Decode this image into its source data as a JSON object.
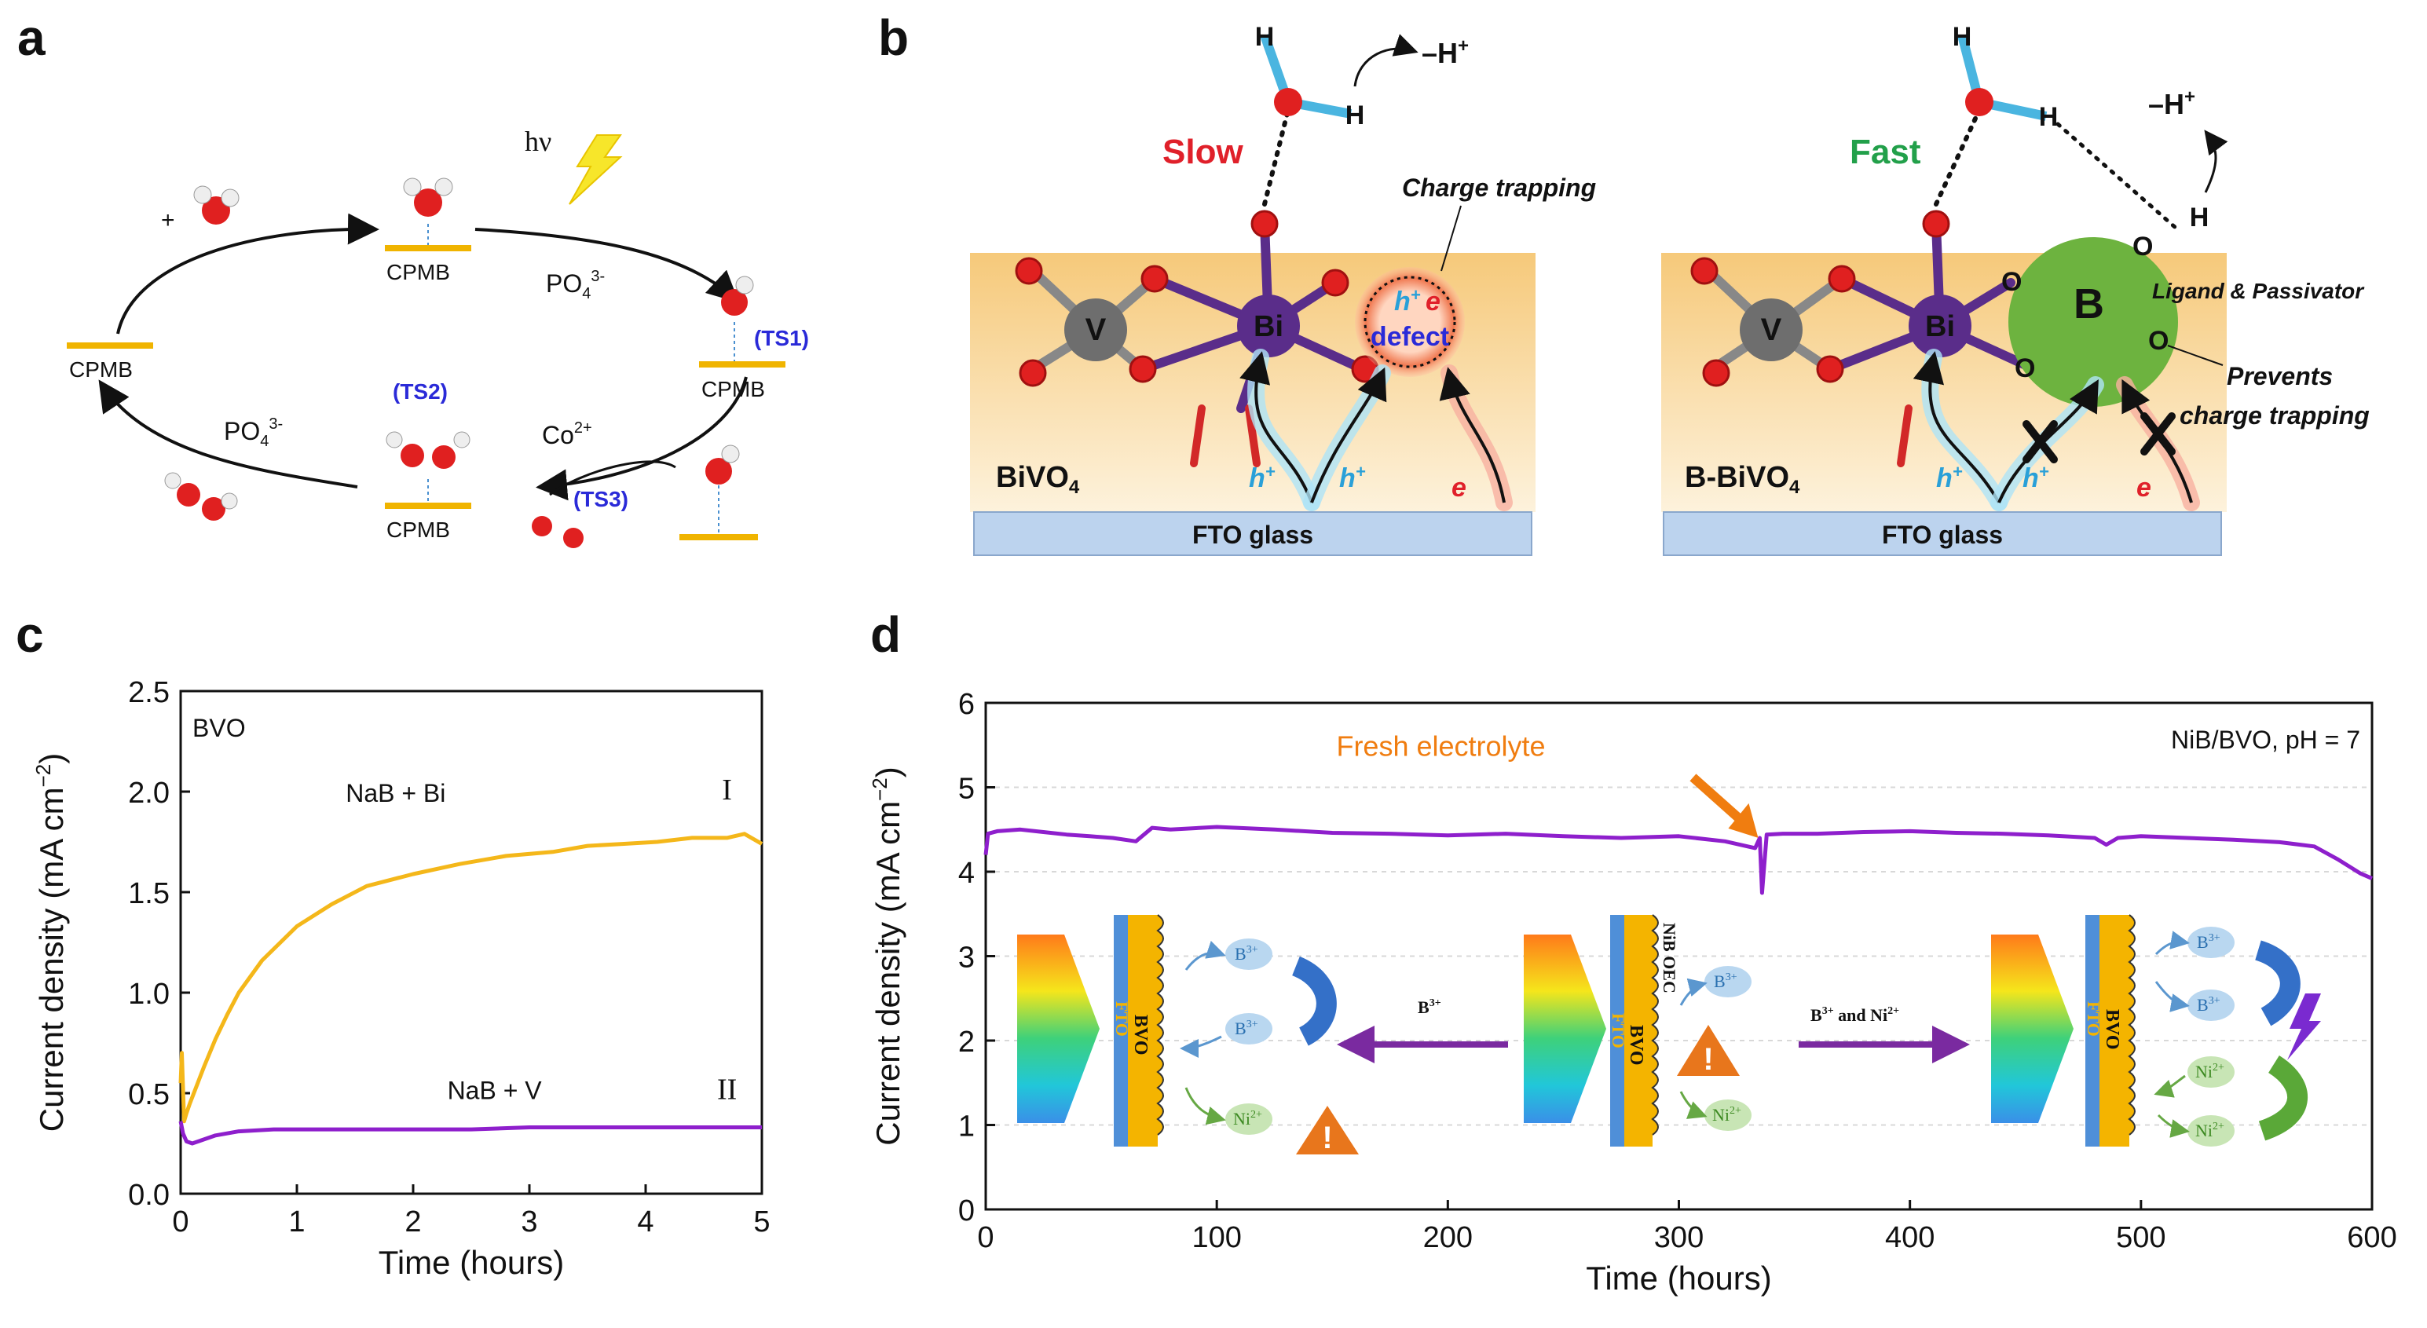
{
  "panels": {
    "a": {
      "letter": "a",
      "hv": "hν",
      "cpmb": "CPMB",
      "plus": "+",
      "po4_top": "PO",
      "po4_bottom": "PO",
      "po4_sub": "4",
      "po4_sup": "3-",
      "co": "Co",
      "co_sup": "2+",
      "ts1": "(TS1)",
      "ts2": "(TS2)",
      "ts3": "(TS3)"
    },
    "b": {
      "letter": "b",
      "slow": "Slow",
      "fast": "Fast",
      "minus_h_left": "–H",
      "minus_h_right": "–H",
      "plus_sup": "+",
      "charge_trapping": "Charge trapping",
      "defect": "defect",
      "h_plus": "h",
      "e_minus": "e",
      "bivo4_label": "BiVO",
      "bbivo4_label": "B-BiVO",
      "sub4": "4",
      "fto_glass": "FTO glass",
      "ligand_passivator": "Ligand & Passivator",
      "prevents_1": "Prevents",
      "prevents_2": "charge trapping",
      "atom_v": "V",
      "atom_bi": "Bi",
      "atom_b": "B",
      "atom_o": "O",
      "atom_h": "H"
    },
    "c": {
      "letter": "c"
    },
    "d": {
      "letter": "d",
      "fto": "FTO",
      "bvo": "BVO",
      "nib_oec": "NiB OEC",
      "b3": "B",
      "b3_sup": "3+",
      "ni2": "Ni",
      "ni2_sup": "2+",
      "arrow_b3": "B",
      "arrow_b3_sup": "3+",
      "arrow_b3ni": "B",
      "arrow_b3ni_sup": "3+",
      "arrow_b3ni_mid": " and Ni",
      "arrow_b3ni_sup2": "2+",
      "warning": "!"
    }
  },
  "colors": {
    "yellow_bar": "#f0b400",
    "purple": "#8e1fcc",
    "orange_curve": "#f4b71a",
    "blue_ts": "#2a2ad8",
    "slow_red": "#e0202a",
    "fast_green": "#22a04a",
    "fresh_orange": "#f07d10",
    "bi_purple": "#5a2d8a",
    "v_gray": "#6e6e6e",
    "b_green": "#6db33f",
    "fto_blue": "#bcd3ee"
  },
  "chart_data": [
    {
      "panel": "c",
      "type": "line",
      "xlabel": "Time (hours)",
      "ylabel": "Current density (mA cm",
      "ylabel_sup": "−2",
      "ylabel_end": ")",
      "xlim": [
        0,
        5
      ],
      "ylim": [
        0,
        2.5
      ],
      "xticks": [
        0,
        1,
        2,
        3,
        4,
        5
      ],
      "xtick_labels": [
        "0",
        "1",
        "2",
        "3",
        "4",
        "5"
      ],
      "yticks": [
        0,
        0.5,
        1,
        1.5,
        2,
        2.5
      ],
      "ytick_labels": [
        "0.0",
        "0.5",
        "1.0",
        "1.5",
        "2.0",
        "2.5"
      ],
      "corner_label": "BVO",
      "series": [
        {
          "name": "NaB + Bi",
          "roman": "I",
          "color": "#f4b71a",
          "x": [
            0,
            0.01,
            0.03,
            0.05,
            0.08,
            0.1,
            0.2,
            0.3,
            0.4,
            0.5,
            0.7,
            1.0,
            1.3,
            1.6,
            2.0,
            2.4,
            2.8,
            3.2,
            3.5,
            3.8,
            4.1,
            4.4,
            4.7,
            4.85,
            5.0
          ],
          "y": [
            0.55,
            0.7,
            0.36,
            0.4,
            0.45,
            0.48,
            0.63,
            0.77,
            0.89,
            1.0,
            1.16,
            1.33,
            1.44,
            1.53,
            1.59,
            1.64,
            1.68,
            1.7,
            1.73,
            1.74,
            1.75,
            1.77,
            1.77,
            1.79,
            1.74
          ]
        },
        {
          "name": "NaB + V",
          "roman": "II",
          "color": "#8e1fcc",
          "x": [
            0,
            0.02,
            0.05,
            0.1,
            0.2,
            0.3,
            0.5,
            0.8,
            1.0,
            1.5,
            2.0,
            2.5,
            3.0,
            3.5,
            4.0,
            4.5,
            5.0
          ],
          "y": [
            0.36,
            0.3,
            0.26,
            0.25,
            0.27,
            0.29,
            0.31,
            0.32,
            0.32,
            0.32,
            0.32,
            0.32,
            0.33,
            0.33,
            0.33,
            0.33,
            0.33
          ]
        }
      ]
    },
    {
      "panel": "d",
      "type": "line",
      "xlabel": "Time (hours)",
      "ylabel": "Current density (mA cm",
      "ylabel_sup": "−2",
      "ylabel_end": ")",
      "xlim": [
        0,
        600
      ],
      "ylim": [
        0,
        6
      ],
      "xticks": [
        0,
        100,
        200,
        300,
        400,
        500,
        600
      ],
      "xtick_labels": [
        "0",
        "100",
        "200",
        "300",
        "400",
        "500",
        "600"
      ],
      "yticks": [
        0,
        1,
        2,
        3,
        4,
        5,
        6
      ],
      "ytick_labels": [
        "0",
        "1",
        "2",
        "3",
        "4",
        "5",
        "6"
      ],
      "corner_label": "NiB/BVO, pH = 7",
      "annotation": "Fresh electrolyte",
      "annotation_x": 335,
      "series": [
        {
          "name": "NiB/BVO",
          "color": "#8e1fcc",
          "x": [
            0,
            1,
            5,
            15,
            25,
            35,
            45,
            55,
            65,
            72,
            80,
            100,
            125,
            150,
            175,
            200,
            225,
            250,
            275,
            300,
            320,
            333,
            335,
            336,
            338,
            345,
            360,
            380,
            400,
            420,
            440,
            460,
            480,
            485,
            490,
            500,
            520,
            540,
            560,
            575,
            585,
            595,
            600
          ],
          "y": [
            4.2,
            4.45,
            4.48,
            4.5,
            4.47,
            4.44,
            4.42,
            4.4,
            4.36,
            4.52,
            4.5,
            4.53,
            4.5,
            4.46,
            4.45,
            4.43,
            4.45,
            4.42,
            4.4,
            4.42,
            4.36,
            4.28,
            4.4,
            3.75,
            4.44,
            4.45,
            4.45,
            4.47,
            4.48,
            4.46,
            4.45,
            4.43,
            4.4,
            4.32,
            4.4,
            4.42,
            4.4,
            4.38,
            4.35,
            4.3,
            4.15,
            3.98,
            3.92
          ]
        }
      ]
    }
  ]
}
